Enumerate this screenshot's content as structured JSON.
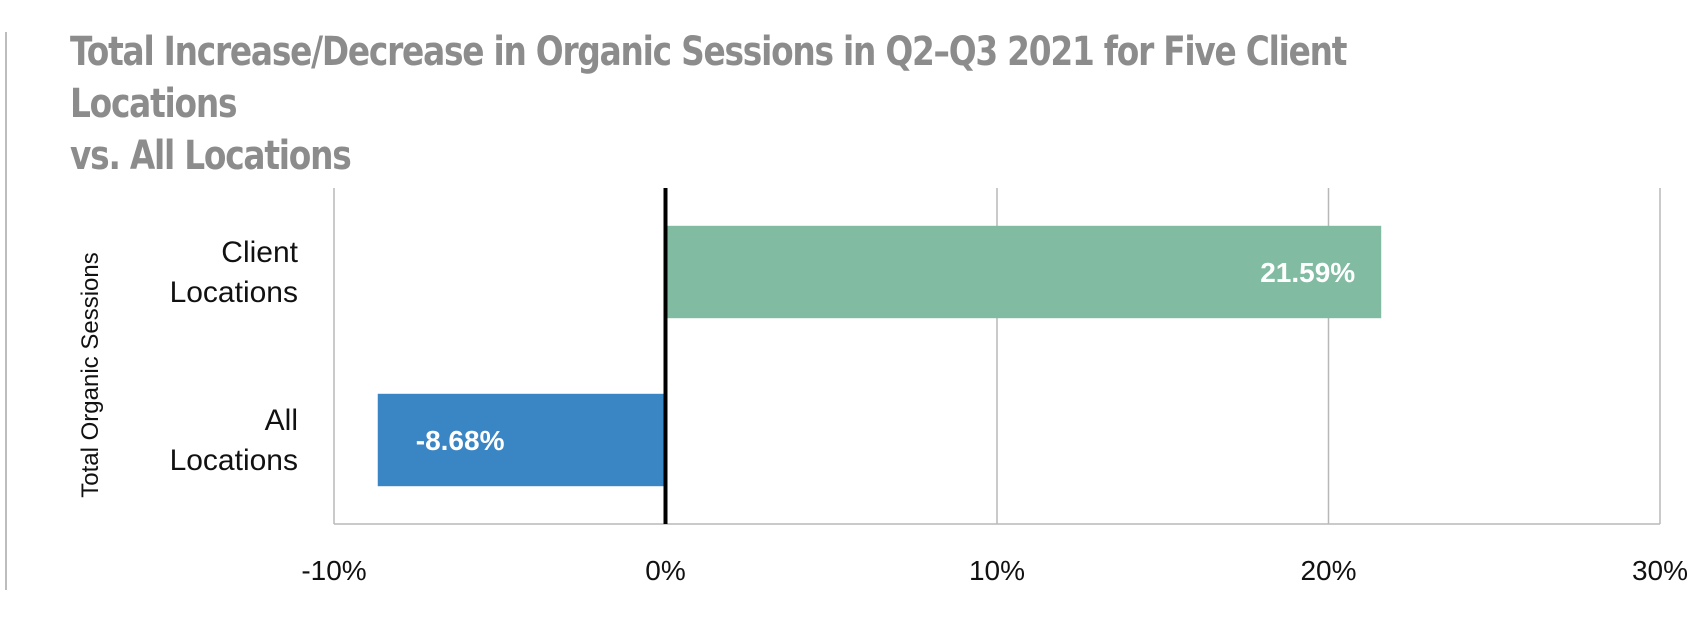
{
  "chart_data": {
    "type": "bar",
    "orientation": "horizontal",
    "title_lines": [
      "Total Increase/Decrease in Organic Sessions in Q2–Q3 2021 for Five Client Locations",
      "vs. All Locations"
    ],
    "ylabel": "Total Organic Sessions",
    "xlabel": "",
    "categories": [
      {
        "lines": [
          "Client",
          "Locations"
        ]
      },
      {
        "lines": [
          "All",
          "Locations"
        ]
      }
    ],
    "values": [
      21.59,
      -8.68
    ],
    "value_labels": [
      "21.59%",
      "-8.68%"
    ],
    "colors": [
      "#80bba2",
      "#3a85c4"
    ],
    "xlim": [
      -10,
      30
    ],
    "xticks": [
      -10,
      0,
      10,
      20,
      30
    ],
    "xtick_labels": [
      "-10%",
      "0%",
      "10%",
      "20%",
      "30%"
    ],
    "grid": true,
    "legend": "none"
  }
}
